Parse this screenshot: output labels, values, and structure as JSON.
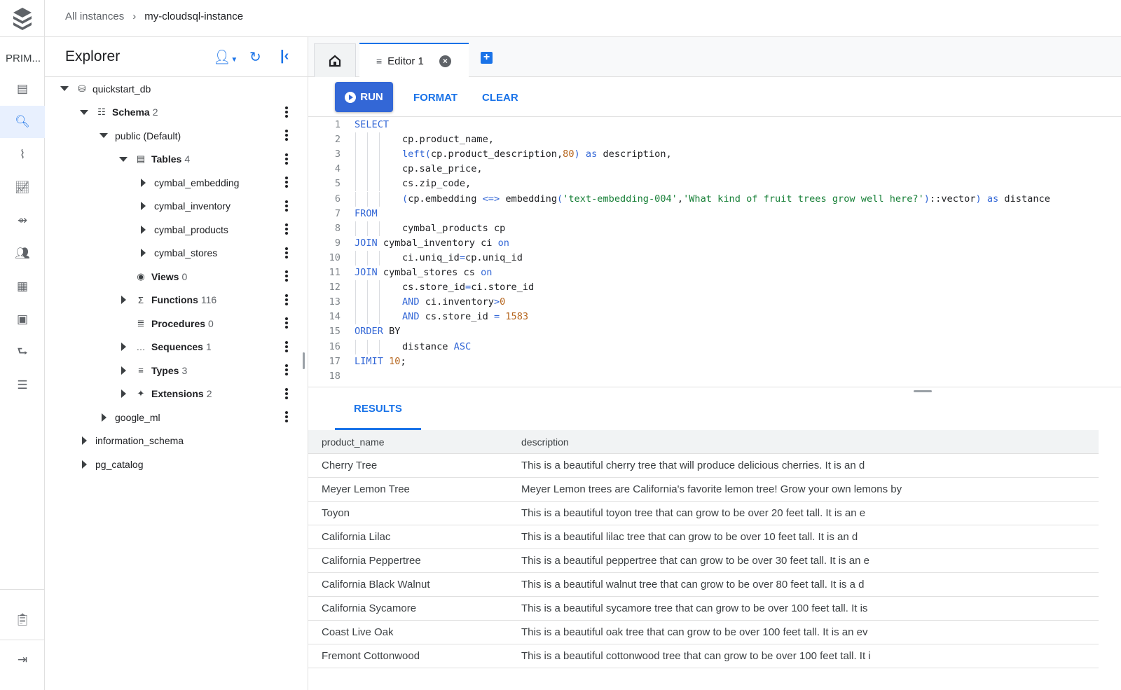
{
  "breadcrumb": {
    "parent": "All instances",
    "current": "my-cloudsql-instance"
  },
  "rail": {
    "label": "PRIM...",
    "icons": [
      "instance-icon",
      "search-icon",
      "monitoring-icon",
      "insights-icon",
      "connections-icon",
      "users-icon",
      "databases-icon",
      "backups-icon",
      "replicas-icon",
      "operations-icon",
      "notes-icon",
      "expand-icon"
    ]
  },
  "explorer": {
    "title": "Explorer",
    "tree": [
      {
        "label": "quickstart_db",
        "count": "",
        "icon": "database-icon",
        "expand": "down",
        "indent": 0,
        "bold": false,
        "menu": false
      },
      {
        "label": "Schema",
        "count": "2",
        "icon": "schema-icon",
        "expand": "down",
        "indent": 1,
        "bold": true,
        "menu": true
      },
      {
        "label": "public (Default)",
        "count": "",
        "icon": "",
        "expand": "down",
        "indent": 2,
        "bold": false,
        "menu": true
      },
      {
        "label": "Tables",
        "count": "4",
        "icon": "table-icon",
        "expand": "down",
        "indent": 3,
        "bold": true,
        "menu": true
      },
      {
        "label": "cymbal_embedding",
        "count": "",
        "icon": "",
        "expand": "right",
        "indent": 4,
        "bold": false,
        "menu": true
      },
      {
        "label": "cymbal_inventory",
        "count": "",
        "icon": "",
        "expand": "right",
        "indent": 4,
        "bold": false,
        "menu": true
      },
      {
        "label": "cymbal_products",
        "count": "",
        "icon": "",
        "expand": "right",
        "indent": 4,
        "bold": false,
        "menu": true
      },
      {
        "label": "cymbal_stores",
        "count": "",
        "icon": "",
        "expand": "right",
        "indent": 4,
        "bold": false,
        "menu": true
      },
      {
        "label": "Views",
        "count": "0",
        "icon": "eye-icon",
        "expand": "",
        "indent": 3,
        "bold": true,
        "menu": true
      },
      {
        "label": "Functions",
        "count": "116",
        "icon": "sigma-icon",
        "expand": "right",
        "indent": 3,
        "bold": true,
        "menu": true
      },
      {
        "label": "Procedures",
        "count": "0",
        "icon": "procedure-icon",
        "expand": "",
        "indent": 3,
        "bold": true,
        "menu": true
      },
      {
        "label": "Sequences",
        "count": "1",
        "icon": "sequence-icon",
        "expand": "right",
        "indent": 3,
        "bold": true,
        "menu": true
      },
      {
        "label": "Types",
        "count": "3",
        "icon": "types-icon",
        "expand": "right",
        "indent": 3,
        "bold": true,
        "menu": true
      },
      {
        "label": "Extensions",
        "count": "2",
        "icon": "extension-icon",
        "expand": "right",
        "indent": 3,
        "bold": true,
        "menu": true
      },
      {
        "label": "google_ml",
        "count": "",
        "icon": "",
        "expand": "right",
        "indent": 2,
        "bold": false,
        "menu": true
      },
      {
        "label": "information_schema",
        "count": "",
        "icon": "",
        "expand": "right",
        "indent": 1,
        "bold": false,
        "menu": false
      },
      {
        "label": "pg_catalog",
        "count": "",
        "icon": "",
        "expand": "right",
        "indent": 1,
        "bold": false,
        "menu": false
      }
    ]
  },
  "tabs": {
    "editor_label": "Editor 1"
  },
  "toolbar": {
    "run": "RUN",
    "format": "FORMAT",
    "clear": "CLEAR"
  },
  "code": [
    {
      "n": "1",
      "g": 0,
      "t": [
        [
          "k",
          "SELECT"
        ]
      ]
    },
    {
      "n": "2",
      "g": 3,
      "t": [
        [
          "p",
          "cp.product_name,"
        ]
      ]
    },
    {
      "n": "3",
      "g": 3,
      "t": [
        [
          "k",
          "left("
        ],
        [
          "p",
          "cp.product_description,"
        ],
        [
          "n",
          "80"
        ],
        [
          "k",
          ")"
        ],
        [
          "p",
          " "
        ],
        [
          "k",
          "as"
        ],
        [
          "p",
          " description,"
        ]
      ]
    },
    {
      "n": "4",
      "g": 3,
      "t": [
        [
          "p",
          "cp.sale_price,"
        ]
      ]
    },
    {
      "n": "5",
      "g": 3,
      "t": [
        [
          "p",
          "cs.zip_code,"
        ]
      ]
    },
    {
      "n": "6",
      "g": 3,
      "t": [
        [
          "k",
          "("
        ],
        [
          "p",
          "cp.embedding "
        ],
        [
          "k",
          "<=>"
        ],
        [
          "p",
          " embedding"
        ],
        [
          "k",
          "("
        ],
        [
          "s",
          "'text-embedding-004'"
        ],
        [
          "p",
          ","
        ],
        [
          "s",
          "'What kind of fruit trees grow well here?'"
        ],
        [
          "k",
          ")"
        ],
        [
          "p",
          "::vector"
        ],
        [
          "k",
          ")"
        ],
        [
          "p",
          " "
        ],
        [
          "k",
          "as"
        ],
        [
          "p",
          " distance"
        ]
      ]
    },
    {
      "n": "7",
      "g": 0,
      "t": [
        [
          "k",
          "FROM"
        ]
      ]
    },
    {
      "n": "8",
      "g": 3,
      "t": [
        [
          "p",
          "cymbal_products cp"
        ]
      ]
    },
    {
      "n": "9",
      "g": 0,
      "t": [
        [
          "k",
          "JOIN"
        ],
        [
          "p",
          " cymbal_inventory ci "
        ],
        [
          "k",
          "on"
        ]
      ]
    },
    {
      "n": "10",
      "g": 3,
      "t": [
        [
          "p",
          "ci.uniq_id"
        ],
        [
          "k",
          "="
        ],
        [
          "p",
          "cp.uniq_id"
        ]
      ]
    },
    {
      "n": "11",
      "g": 0,
      "t": [
        [
          "k",
          "JOIN"
        ],
        [
          "p",
          " cymbal_stores cs "
        ],
        [
          "k",
          "on"
        ]
      ]
    },
    {
      "n": "12",
      "g": 3,
      "t": [
        [
          "p",
          "cs.store_id"
        ],
        [
          "k",
          "="
        ],
        [
          "p",
          "ci.store_id"
        ]
      ]
    },
    {
      "n": "13",
      "g": 3,
      "t": [
        [
          "k",
          "AND"
        ],
        [
          "p",
          " ci.inventory"
        ],
        [
          "k",
          ">"
        ],
        [
          "n",
          "0"
        ]
      ]
    },
    {
      "n": "14",
      "g": 3,
      "t": [
        [
          "k",
          "AND"
        ],
        [
          "p",
          " cs.store_id "
        ],
        [
          "k",
          "="
        ],
        [
          "p",
          " "
        ],
        [
          "n",
          "1583"
        ]
      ]
    },
    {
      "n": "15",
      "g": 0,
      "t": [
        [
          "k",
          "ORDER"
        ],
        [
          "p",
          " BY"
        ]
      ]
    },
    {
      "n": "16",
      "g": 3,
      "t": [
        [
          "p",
          "distance "
        ],
        [
          "k",
          "ASC"
        ]
      ]
    },
    {
      "n": "17",
      "g": 0,
      "t": [
        [
          "k",
          "LIMIT"
        ],
        [
          "p",
          " "
        ],
        [
          "n",
          "10"
        ],
        [
          "p",
          ";"
        ]
      ]
    },
    {
      "n": "18",
      "g": 0,
      "t": []
    }
  ],
  "results": {
    "tab": "RESULTS",
    "columns": [
      "product_name",
      "description"
    ],
    "rows": [
      [
        "Cherry Tree",
        "This is a beautiful cherry tree that will produce delicious cherries. It is an d"
      ],
      [
        "Meyer Lemon Tree",
        "Meyer Lemon trees are California's favorite lemon tree! Grow your own lemons by"
      ],
      [
        "Toyon",
        "This is a beautiful toyon tree that can grow to be over 20 feet tall. It is an e"
      ],
      [
        "California Lilac",
        "This is a beautiful lilac tree that can grow to be over 10 feet tall. It is an d"
      ],
      [
        "California Peppertree",
        "This is a beautiful peppertree that can grow to be over 30 feet tall. It is an e"
      ],
      [
        "California Black Walnut",
        "This is a beautiful walnut tree that can grow to be over 80 feet tall. It is a d"
      ],
      [
        "California Sycamore",
        "This is a beautiful sycamore tree that can grow to be over 100 feet tall. It is"
      ],
      [
        "Coast Live Oak",
        "This is a beautiful oak tree that can grow to be over 100 feet tall. It is an ev"
      ],
      [
        "Fremont Cottonwood",
        "This is a beautiful cottonwood tree that can grow to be over 100 feet tall. It i"
      ]
    ]
  }
}
